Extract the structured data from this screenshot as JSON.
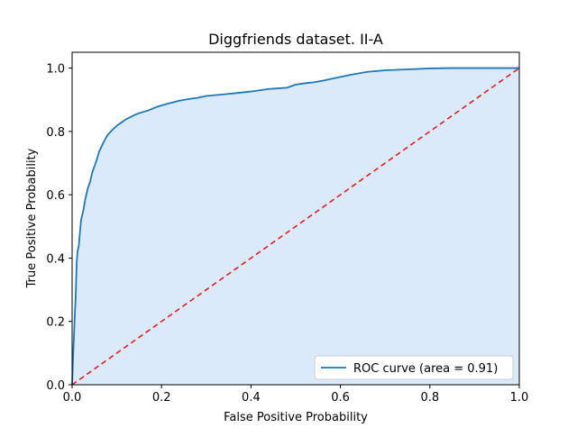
{
  "chart_data": {
    "type": "line",
    "title": "Diggfriends dataset. II-A",
    "xlabel": "False Positive Probability",
    "ylabel": "True Positive Probability",
    "xlim": [
      0.0,
      1.0
    ],
    "ylim": [
      0.0,
      1.05
    ],
    "xticks": [
      "0.0",
      "0.2",
      "0.4",
      "0.6",
      "0.8",
      "1.0"
    ],
    "yticks": [
      "0.0",
      "0.2",
      "0.4",
      "0.6",
      "0.8",
      "1.0"
    ],
    "grid": false,
    "legend_position": "lower right",
    "colors": {
      "roc": "#1f77b4",
      "fill": "#dbeafb",
      "diagonal": "#e31a1c"
    },
    "series": [
      {
        "name": "ROC curve (area = 0.91)",
        "style": "solid",
        "fill_under": true,
        "x": [
          0.0,
          0.002,
          0.004,
          0.006,
          0.008,
          0.01,
          0.012,
          0.015,
          0.018,
          0.02,
          0.025,
          0.03,
          0.035,
          0.04,
          0.045,
          0.05,
          0.055,
          0.06,
          0.065,
          0.07,
          0.075,
          0.08,
          0.09,
          0.1,
          0.11,
          0.12,
          0.13,
          0.14,
          0.15,
          0.16,
          0.17,
          0.18,
          0.19,
          0.2,
          0.22,
          0.24,
          0.26,
          0.28,
          0.3,
          0.33,
          0.36,
          0.4,
          0.44,
          0.46,
          0.48,
          0.5,
          0.52,
          0.54,
          0.56,
          0.58,
          0.6,
          0.62,
          0.64,
          0.66,
          0.7,
          0.75,
          0.8,
          0.85,
          0.9,
          0.95,
          1.0
        ],
        "y": [
          0.0,
          0.08,
          0.15,
          0.22,
          0.28,
          0.38,
          0.42,
          0.44,
          0.49,
          0.52,
          0.55,
          0.59,
          0.62,
          0.64,
          0.67,
          0.69,
          0.71,
          0.735,
          0.75,
          0.765,
          0.778,
          0.79,
          0.805,
          0.818,
          0.828,
          0.838,
          0.845,
          0.852,
          0.858,
          0.862,
          0.866,
          0.872,
          0.878,
          0.882,
          0.89,
          0.897,
          0.902,
          0.906,
          0.912,
          0.916,
          0.92,
          0.926,
          0.934,
          0.936,
          0.938,
          0.948,
          0.952,
          0.955,
          0.96,
          0.966,
          0.972,
          0.978,
          0.983,
          0.988,
          0.993,
          0.996,
          0.999,
          1.0,
          1.0,
          1.0,
          1.0
        ]
      },
      {
        "name": "",
        "style": "dashed",
        "x": [
          0.0,
          1.0
        ],
        "y": [
          0.0,
          1.0
        ]
      }
    ]
  }
}
